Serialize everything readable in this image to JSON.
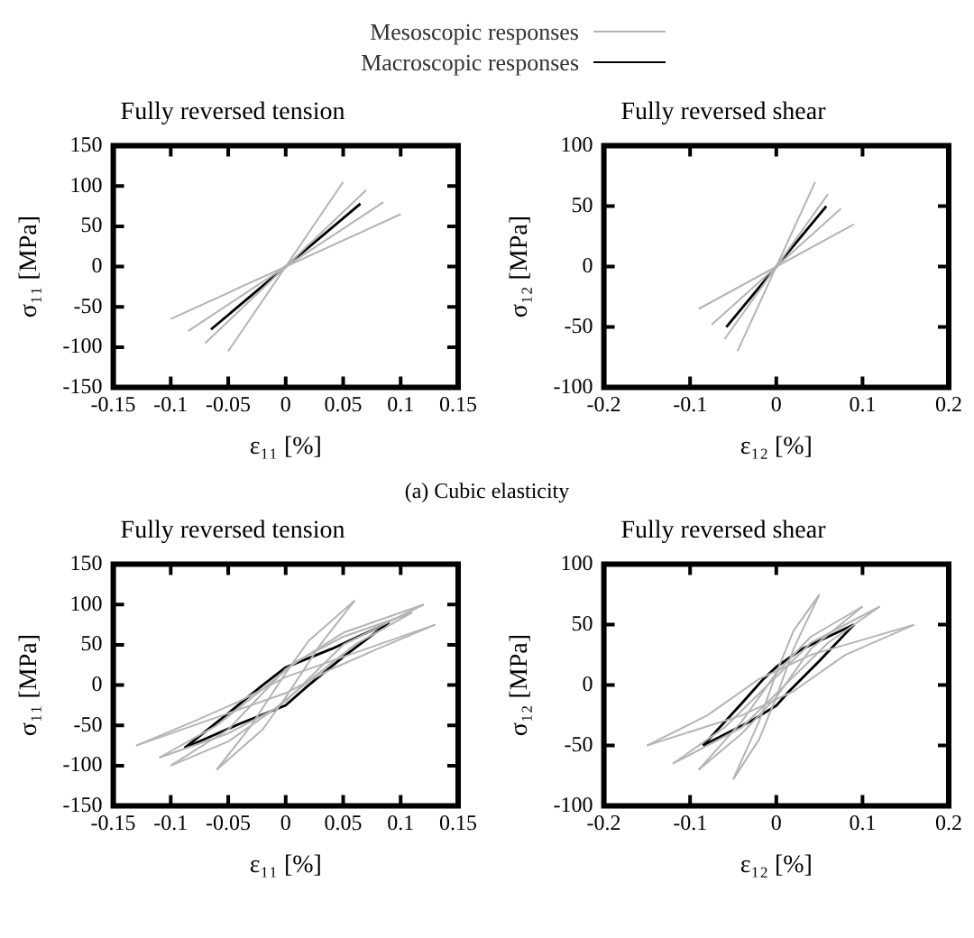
{
  "chart_data": [
    {
      "type": "line",
      "title": "Fully reversed tension",
      "xlabel": "ε₁₁ [%]",
      "ylabel": "σ₁₁ [MPa]",
      "xlim": [
        -0.15,
        0.15
      ],
      "xticks": [
        -0.15,
        -0.1,
        -0.05,
        0,
        0.05,
        0.1,
        0.15
      ],
      "ylim": [
        -150,
        150
      ],
      "yticks": [
        -150,
        -100,
        -50,
        0,
        50,
        100,
        150
      ],
      "legend": "top",
      "annotations": [
        "(a) Cubic elasticity"
      ],
      "series": [
        {
          "name": "Mesoscopic responses",
          "color": "#b4b4b4",
          "x": [
            -0.05,
            0.05
          ],
          "values": [
            -105,
            105
          ]
        },
        {
          "color": "#b4b4b4",
          "x": [
            -0.07,
            0.07
          ],
          "values": [
            -95,
            95
          ]
        },
        {
          "color": "#b4b4b4",
          "x": [
            -0.085,
            0.085
          ],
          "values": [
            -80,
            80
          ]
        },
        {
          "color": "#b4b4b4",
          "x": [
            -0.1,
            0.1
          ],
          "values": [
            -65,
            65
          ]
        },
        {
          "name": "Macroscopic responses",
          "color": "#000000",
          "x": [
            -0.065,
            0.065
          ],
          "values": [
            -78,
            78
          ]
        }
      ]
    },
    {
      "type": "line",
      "title": "Fully reversed shear",
      "xlabel": "ε₁₂ [%]",
      "ylabel": "σ₁₂ [MPa]",
      "xlim": [
        -0.2,
        0.2
      ],
      "xticks": [
        -0.2,
        -0.1,
        0,
        0.1,
        0.2
      ],
      "ylim": [
        -100,
        100
      ],
      "yticks": [
        -100,
        -50,
        0,
        50,
        100
      ],
      "series": [
        {
          "color": "#b4b4b4",
          "x": [
            -0.045,
            0.045
          ],
          "values": [
            -70,
            70
          ]
        },
        {
          "color": "#b4b4b4",
          "x": [
            -0.06,
            0.06
          ],
          "values": [
            -60,
            60
          ]
        },
        {
          "color": "#b4b4b4",
          "x": [
            -0.075,
            0.075
          ],
          "values": [
            -48,
            48
          ]
        },
        {
          "color": "#b4b4b4",
          "x": [
            -0.09,
            0.09
          ],
          "values": [
            -35,
            35
          ]
        },
        {
          "color": "#000000",
          "x": [
            -0.058,
            0.058
          ],
          "values": [
            -50,
            50
          ]
        }
      ]
    },
    {
      "type": "line",
      "title": "Fully reversed tension",
      "xlabel": "ε₁₁ [%]",
      "ylabel": "σ₁₁ [MPa]",
      "xlim": [
        -0.15,
        0.15
      ],
      "xticks": [
        -0.15,
        -0.1,
        -0.05,
        0,
        0.05,
        0.1,
        0.15
      ],
      "ylim": [
        -150,
        150
      ],
      "yticks": [
        -150,
        -100,
        -50,
        0,
        50,
        100,
        150
      ],
      "series": [
        {
          "color": "#b4b4b4",
          "x": [
            -0.13,
            -0.08,
            -0.04,
            0,
            0.05,
            0.13
          ],
          "values": [
            -75,
            -45,
            -20,
            10,
            35,
            75
          ]
        },
        {
          "color": "#b4b4b4",
          "x": [
            -0.13,
            -0.05,
            0,
            0.04,
            0.08,
            0.13
          ],
          "values": [
            -75,
            -35,
            -10,
            20,
            45,
            75
          ]
        },
        {
          "color": "#b4b4b4",
          "x": [
            -0.06,
            -0.03,
            0,
            0.02,
            0.06
          ],
          "values": [
            -105,
            -50,
            15,
            55,
            105
          ]
        },
        {
          "color": "#b4b4b4",
          "x": [
            -0.06,
            -0.02,
            0,
            0.03,
            0.06
          ],
          "values": [
            -105,
            -55,
            -15,
            50,
            105
          ]
        },
        {
          "color": "#b4b4b4",
          "x": [
            -0.11,
            -0.06,
            -0.02,
            0.01,
            0.05,
            0.11
          ],
          "values": [
            -90,
            -50,
            -5,
            30,
            60,
            90
          ]
        },
        {
          "color": "#b4b4b4",
          "x": [
            -0.11,
            -0.05,
            -0.01,
            0.02,
            0.06,
            0.11
          ],
          "values": [
            -90,
            -60,
            -30,
            5,
            50,
            90
          ]
        },
        {
          "color": "#b4b4b4",
          "x": [
            -0.1,
            -0.05,
            0,
            0.05,
            0.12
          ],
          "values": [
            -100,
            -55,
            20,
            65,
            100
          ]
        },
        {
          "color": "#b4b4b4",
          "x": [
            -0.1,
            -0.05,
            0,
            0.05,
            0.12
          ],
          "values": [
            -100,
            -70,
            -20,
            50,
            100
          ]
        },
        {
          "color": "#000000",
          "x": [
            -0.088,
            -0.05,
            -0.02,
            0,
            0.04,
            0.09
          ],
          "values": [
            -78,
            -35,
            0,
            22,
            45,
            78
          ]
        },
        {
          "color": "#000000",
          "x": [
            -0.088,
            -0.04,
            0,
            0.02,
            0.05,
            0.09
          ],
          "values": [
            -78,
            -48,
            -25,
            0,
            35,
            78
          ]
        }
      ]
    },
    {
      "type": "line",
      "title": "Fully reversed shear",
      "xlabel": "ε₁₂ [%]",
      "ylabel": "σ₁₂ [MPa]",
      "xlim": [
        -0.2,
        0.2
      ],
      "xticks": [
        -0.2,
        -0.1,
        0,
        0.1,
        0.2
      ],
      "ylim": [
        -100,
        100
      ],
      "yticks": [
        -100,
        -50,
        0,
        50,
        100
      ],
      "series": [
        {
          "color": "#b4b4b4",
          "x": [
            -0.15,
            -0.08,
            -0.02,
            0.04,
            0.16
          ],
          "values": [
            -50,
            -25,
            5,
            25,
            50
          ]
        },
        {
          "color": "#b4b4b4",
          "x": [
            -0.15,
            -0.04,
            0.02,
            0.08,
            0.16
          ],
          "values": [
            -50,
            -25,
            -5,
            25,
            50
          ]
        },
        {
          "color": "#b4b4b4",
          "x": [
            -0.05,
            -0.02,
            0,
            0.02,
            0.05
          ],
          "values": [
            -78,
            -30,
            10,
            45,
            75
          ]
        },
        {
          "color": "#b4b4b4",
          "x": [
            -0.05,
            -0.02,
            0,
            0.02,
            0.05
          ],
          "values": [
            -78,
            -45,
            -10,
            30,
            75
          ]
        },
        {
          "color": "#b4b4b4",
          "x": [
            -0.12,
            -0.06,
            -0.01,
            0.04,
            0.12
          ],
          "values": [
            -65,
            -35,
            0,
            35,
            65
          ]
        },
        {
          "color": "#b4b4b4",
          "x": [
            -0.12,
            -0.04,
            0.01,
            0.06,
            0.12
          ],
          "values": [
            -65,
            -35,
            0,
            35,
            65
          ]
        },
        {
          "color": "#b4b4b4",
          "x": [
            -0.09,
            -0.04,
            0,
            0.04,
            0.1
          ],
          "values": [
            -70,
            -30,
            10,
            40,
            65
          ]
        },
        {
          "color": "#b4b4b4",
          "x": [
            -0.09,
            -0.04,
            0,
            0.04,
            0.1
          ],
          "values": [
            -70,
            -40,
            -10,
            30,
            65
          ]
        },
        {
          "color": "#000000",
          "x": [
            -0.085,
            -0.04,
            -0.015,
            0,
            0.03,
            0.09
          ],
          "values": [
            -50,
            -15,
            5,
            15,
            30,
            50
          ]
        },
        {
          "color": "#000000",
          "x": [
            -0.085,
            -0.03,
            0,
            0.015,
            0.05,
            0.09
          ],
          "values": [
            -50,
            -30,
            -17,
            -5,
            20,
            50
          ]
        }
      ]
    }
  ]
}
